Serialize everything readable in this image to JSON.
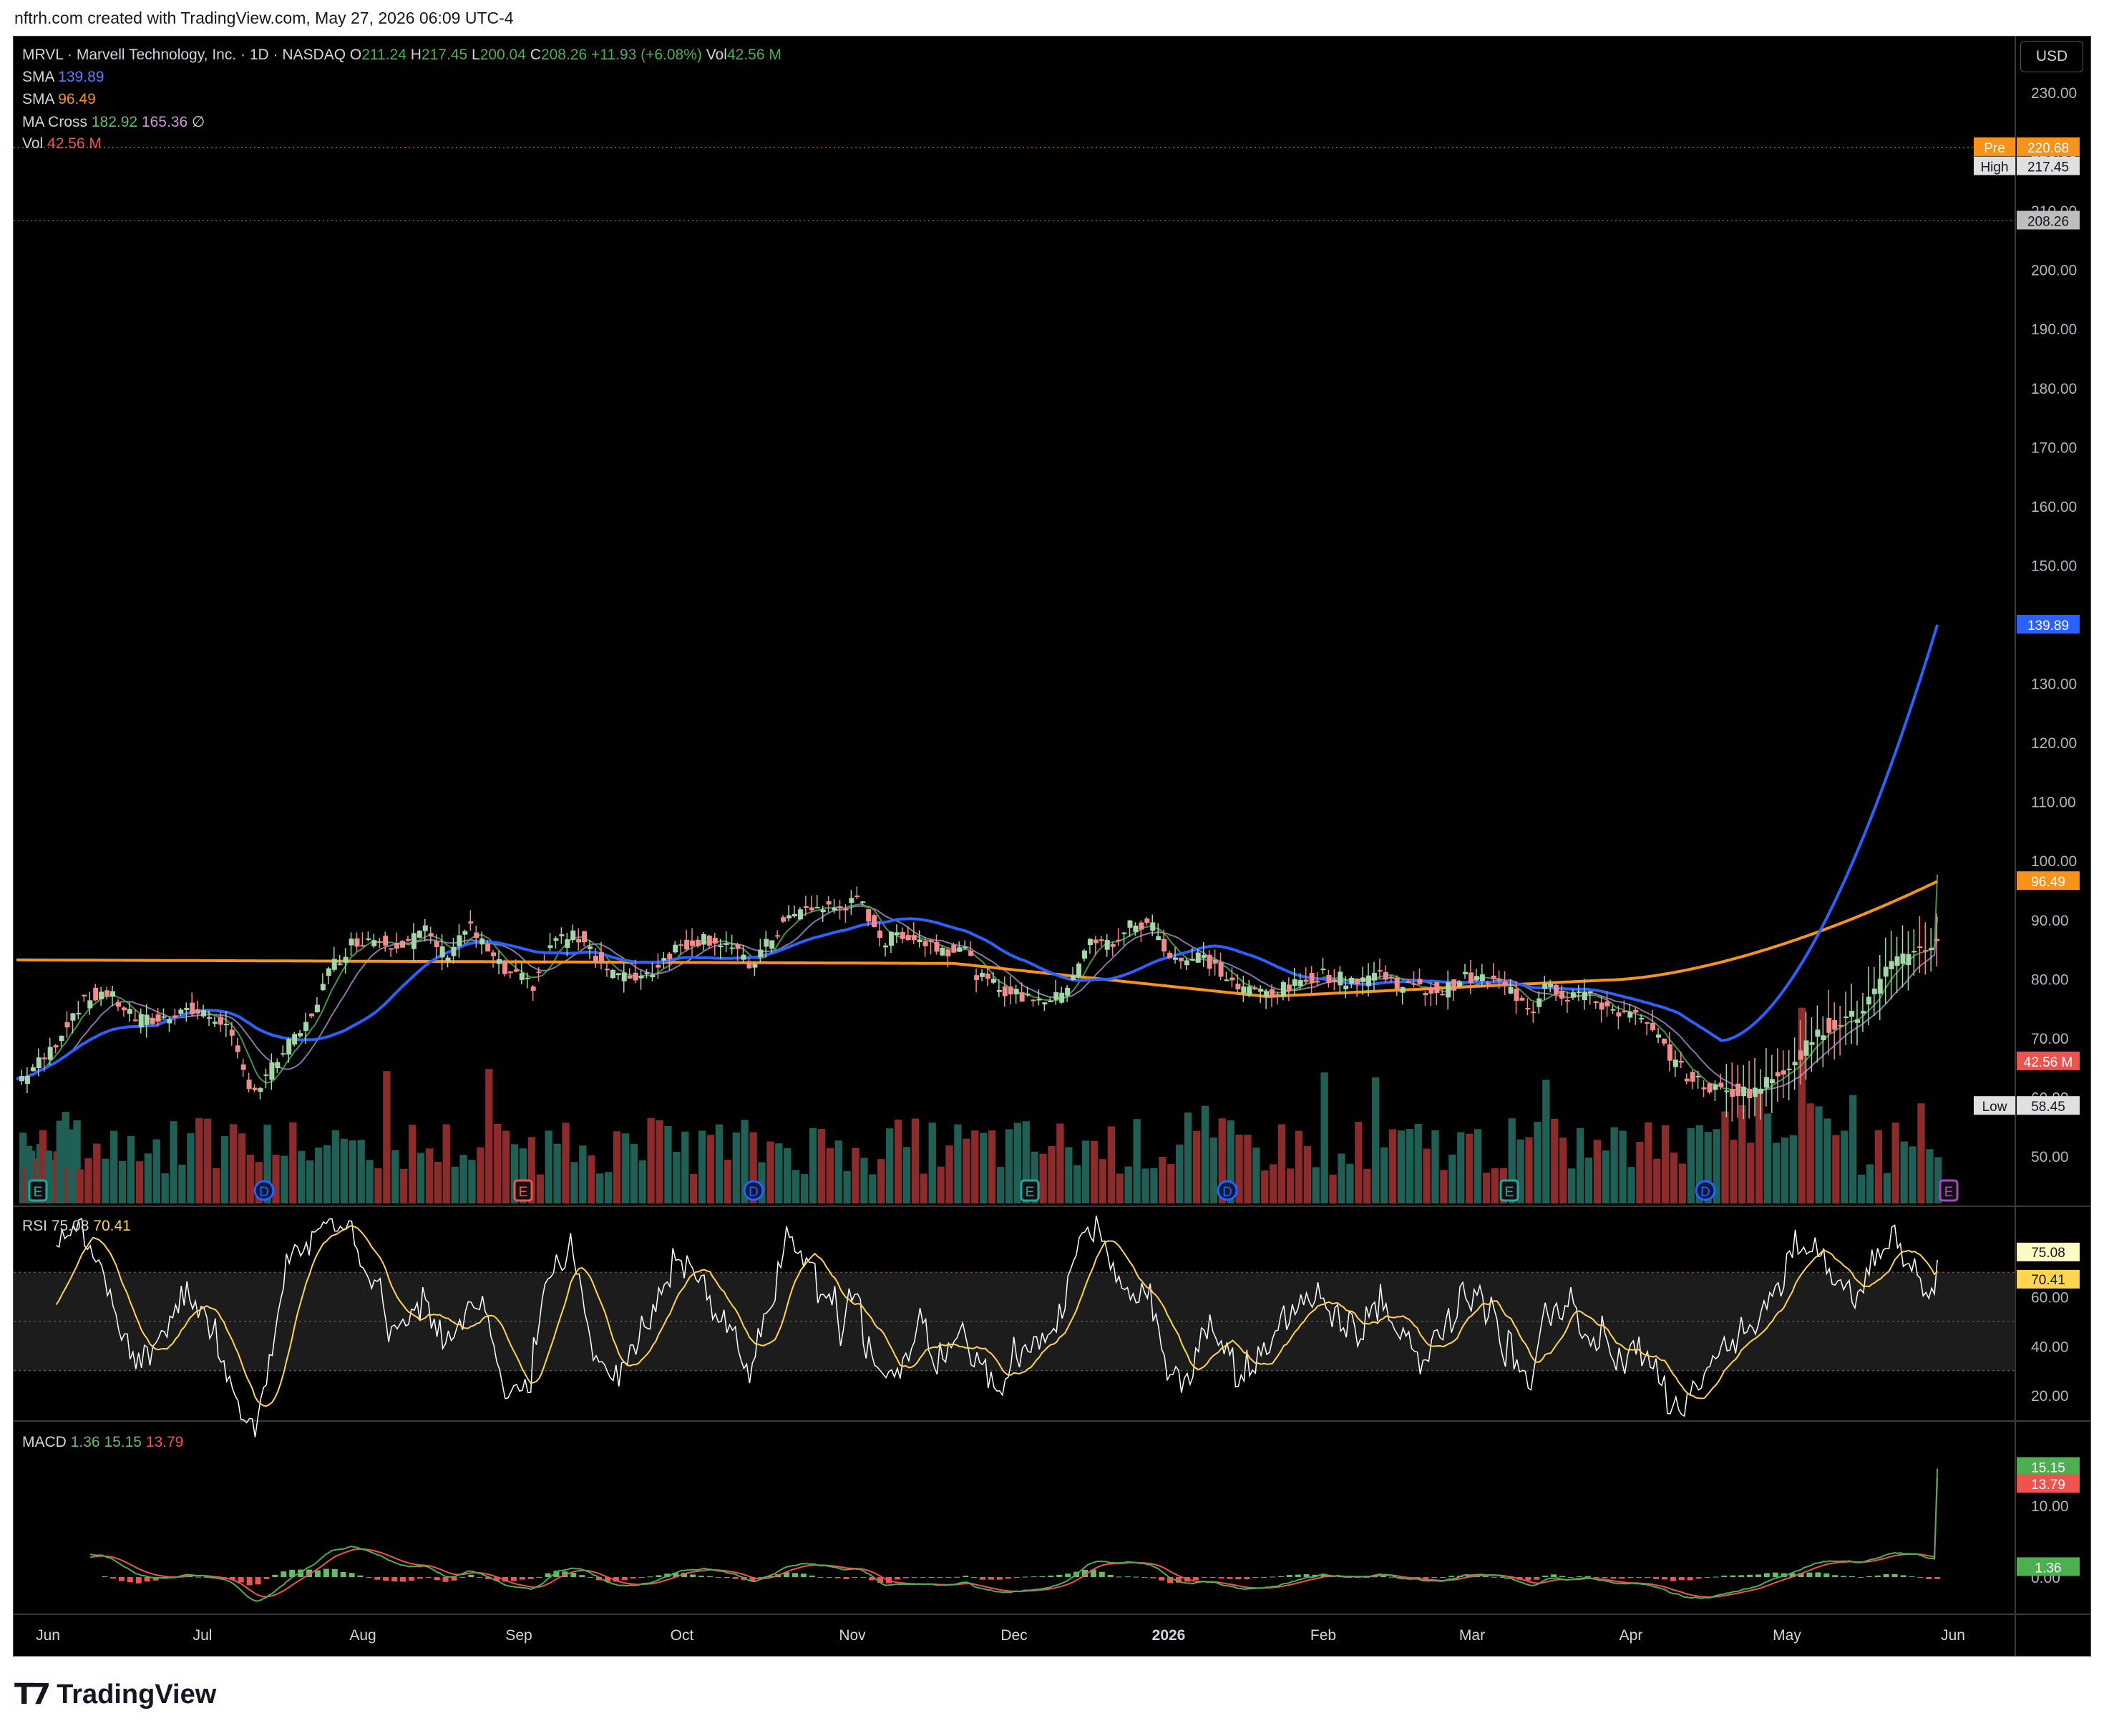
{
  "credit": "nftrh.com created with TradingView.com, May 27, 2026 06:09 UTC-4",
  "brand": "TradingView",
  "currency_button": "USD",
  "legend": {
    "symbol": "MRVL · Marvell Technology, Inc. · 1D · NASDAQ",
    "o_label": "O",
    "o": "211.24",
    "h_label": "H",
    "h": "217.45",
    "l_label": "L",
    "l": "200.04",
    "c_label": "C",
    "c": "208.26",
    "change": "+11.93 (+6.08%)",
    "vol_label": "Vol",
    "vol": "42.56 M",
    "sma1_label": "SMA",
    "sma1": "139.89",
    "sma2_label": "SMA",
    "sma2": "96.49",
    "macross_label": "MA Cross",
    "macross_fast": "182.92",
    "macross_slow": "165.36",
    "macross_icon": "∅",
    "vol2_label": "Vol",
    "vol2": "42.56 M"
  },
  "rsi_legend": {
    "label": "RSI",
    "v1": "75.08",
    "v2": "70.41"
  },
  "macd_legend": {
    "label": "MACD",
    "v1": "1.36",
    "v2": "15.15",
    "v3": "13.79"
  },
  "colors": {
    "up": "#4caf50",
    "up_candle": "#a5d6a7",
    "down_candle": "#f28b8b",
    "sma_fast": "#2962ff",
    "sma_slow": "#f7931a",
    "ma_cross_fast": "#4caf50",
    "ma_cross_slow": "#ce93d8",
    "vol_up": "#1f5f55",
    "vol_down": "#8b2b2b",
    "rsi": "#ffffff",
    "rsi_ma": "#ffd54f",
    "macd_line": "#4caf50",
    "signal": "#ef5350"
  },
  "chart_data": [
    {
      "type": "candlestick",
      "title": "MRVL · Marvell Technology, Inc. · 1D · NASDAQ",
      "x_ticks": [
        "Jun",
        "Jul",
        "Aug",
        "Sep",
        "Oct",
        "Nov",
        "Dec",
        "2026",
        "Feb",
        "Mar",
        "Apr",
        "May",
        "Jun"
      ],
      "y_ticks": [
        "230.00",
        "220.00",
        "210.00",
        "200.00",
        "190.00",
        "180.00",
        "170.00",
        "160.00",
        "150.00",
        "140.00",
        "130.00",
        "120.00",
        "110.00",
        "100.00",
        "90.00",
        "80.00",
        "70.00",
        "60.00",
        "50.00"
      ],
      "ylim": [
        42,
        234
      ],
      "close_path": [
        [
          0,
          63
        ],
        [
          10,
          67
        ],
        [
          20,
          75
        ],
        [
          30,
          78
        ],
        [
          42,
          73
        ],
        [
          50,
          73
        ],
        [
          57,
          75
        ],
        [
          64,
          74
        ],
        [
          72,
          73
        ],
        [
          80,
          63
        ],
        [
          84,
          61
        ],
        [
          92,
          67
        ],
        [
          101,
          72
        ],
        [
          110,
          82
        ],
        [
          117,
          86
        ],
        [
          124,
          87
        ],
        [
          134,
          86
        ],
        [
          143,
          88
        ],
        [
          150,
          84
        ],
        [
          158,
          89
        ],
        [
          166,
          84
        ],
        [
          171,
          81
        ],
        [
          181,
          79
        ],
        [
          189,
          87
        ],
        [
          199,
          87
        ],
        [
          204,
          83
        ],
        [
          212,
          80
        ],
        [
          222,
          81
        ],
        [
          230,
          85
        ],
        [
          241,
          87
        ],
        [
          249,
          86
        ],
        [
          257,
          82
        ],
        [
          262,
          85
        ],
        [
          270,
          90
        ],
        [
          278,
          92
        ],
        [
          287,
          92
        ],
        [
          296,
          93
        ],
        [
          305,
          86
        ],
        [
          310,
          88
        ],
        [
          320,
          86
        ],
        [
          327,
          85
        ],
        [
          332,
          86
        ],
        [
          338,
          80
        ],
        [
          343,
          79
        ],
        [
          352,
          77
        ],
        [
          359,
          77
        ],
        [
          364,
          76
        ],
        [
          370,
          80
        ],
        [
          376,
          86
        ],
        [
          385,
          86
        ],
        [
          391,
          89
        ],
        [
          399,
          89
        ],
        [
          405,
          84
        ],
        [
          412,
          83
        ],
        [
          416,
          84
        ],
        [
          423,
          81
        ],
        [
          430,
          78
        ],
        [
          437,
          78
        ],
        [
          443,
          78
        ],
        [
          450,
          79
        ],
        [
          458,
          81
        ],
        [
          464,
          80
        ],
        [
          471,
          80
        ],
        [
          478,
          81
        ],
        [
          487,
          79
        ],
        [
          494,
          78
        ],
        [
          502,
          78
        ],
        [
          507,
          80
        ],
        [
          515,
          80
        ],
        [
          522,
          79
        ],
        [
          533,
          75
        ],
        [
          537,
          80
        ],
        [
          544,
          77
        ],
        [
          550,
          78
        ],
        [
          555,
          76
        ],
        [
          566,
          74
        ],
        [
          571,
          73
        ],
        [
          580,
          68
        ],
        [
          586,
          64
        ],
        [
          593,
          62
        ],
        [
          599,
          61
        ],
        [
          610,
          61
        ],
        [
          617,
          63
        ],
        [
          624,
          66
        ],
        [
          634,
          71
        ],
        [
          641,
          73
        ],
        [
          648,
          74
        ],
        [
          657,
          81
        ],
        [
          666,
          85
        ],
        [
          676,
          86
        ]
      ],
      "last_close": 208.26,
      "high": 217.45,
      "low": 58.45,
      "pre_market": 220.68,
      "series": [
        {
          "name": "SMA",
          "last": 139.89,
          "color": "#2962ff"
        },
        {
          "name": "SMA",
          "last": 96.49,
          "color": "#f7931a"
        },
        {
          "name": "MA Cross",
          "last": [
            182.92,
            165.36
          ]
        }
      ],
      "price_labels": [
        {
          "label": "Pre",
          "value": "220.68",
          "color": "#f7931a"
        },
        {
          "label": "High",
          "value": "217.45",
          "color": "#d1d4dc"
        },
        {
          "label": "",
          "value": "208.26",
          "color": "#bdbdbd"
        },
        {
          "label": "",
          "value": "139.89",
          "color": "#2962ff"
        },
        {
          "label": "",
          "value": "96.49",
          "color": "#f7931a"
        },
        {
          "label": "",
          "value": "42.56 M",
          "color": "#ef5350"
        },
        {
          "label": "Low",
          "value": "58.45",
          "color": "#d1d4dc"
        }
      ],
      "event_markers": [
        "E",
        "D",
        "E",
        "D",
        "E",
        "D",
        "E",
        "D",
        "E"
      ]
    },
    {
      "type": "line",
      "title": "RSI",
      "ylim": [
        20,
        90
      ],
      "y_ticks": [
        "80.00",
        "60.00",
        "40.00",
        "20.00"
      ],
      "last": [
        75.08,
        70.41
      ]
    },
    {
      "type": "line",
      "title": "MACD",
      "y_ticks": [
        "10.00",
        "0.00"
      ],
      "last": [
        1.36,
        15.15,
        13.79
      ]
    }
  ]
}
